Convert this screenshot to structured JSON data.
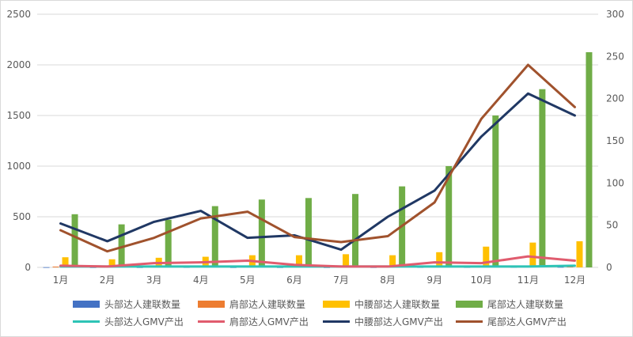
{
  "chart_data": {
    "type": "bar+line",
    "categories": [
      "1月",
      "2月",
      "3月",
      "4月",
      "5月",
      "6月",
      "7月",
      "8月",
      "9月",
      "10月",
      "11月",
      "12月"
    ],
    "left_axis": {
      "ticks": [
        0,
        500,
        1000,
        1500,
        2000,
        2500
      ],
      "range": [
        0,
        2500
      ]
    },
    "right_axis": {
      "ticks": [
        0,
        50,
        100,
        150,
        200,
        250,
        300
      ],
      "range": [
        0,
        300
      ]
    },
    "grid": "horizontal",
    "legend_position": "bottom",
    "bar_series": [
      {
        "name": "头部达人建联数量",
        "color": "#4472C4",
        "values": [
          2,
          1,
          1,
          2,
          1,
          1,
          1,
          1,
          2,
          2,
          3,
          4
        ]
      },
      {
        "name": "肩部达人建联数量",
        "color": "#ED7D31",
        "values": [
          8,
          5,
          6,
          7,
          9,
          8,
          7,
          8,
          10,
          12,
          15,
          18
        ]
      },
      {
        "name": "中腰部达人建联数量",
        "color": "#FFC000",
        "values": [
          100,
          80,
          95,
          105,
          120,
          120,
          130,
          120,
          150,
          205,
          245,
          258
        ]
      },
      {
        "name": "尾部达人建联数量",
        "color": "#70AD47",
        "values": [
          525,
          425,
          470,
          605,
          670,
          685,
          725,
          800,
          1000,
          1500,
          1760,
          2125
        ]
      }
    ],
    "line_series": [
      {
        "name": "头部达人GMV产出",
        "color": "#2EC4B6",
        "values": [
          1,
          1,
          1,
          1,
          1,
          1,
          1,
          1,
          1,
          1,
          1,
          2
        ]
      },
      {
        "name": "肩部达人GMV产出",
        "color": "#E05C6E",
        "values": [
          2,
          1,
          5,
          6,
          8,
          3,
          1,
          1,
          6,
          5,
          13,
          8
        ]
      },
      {
        "name": "中腰部达人GMV产出",
        "color": "#203864",
        "values": [
          52,
          31,
          54,
          67,
          35,
          38,
          21,
          60,
          91,
          155,
          206,
          180
        ]
      },
      {
        "name": "尾部达人GMV产出",
        "color": "#A0522D",
        "values": [
          44,
          19,
          35,
          58,
          66,
          36,
          30,
          37,
          77,
          176,
          240,
          190
        ]
      }
    ]
  }
}
